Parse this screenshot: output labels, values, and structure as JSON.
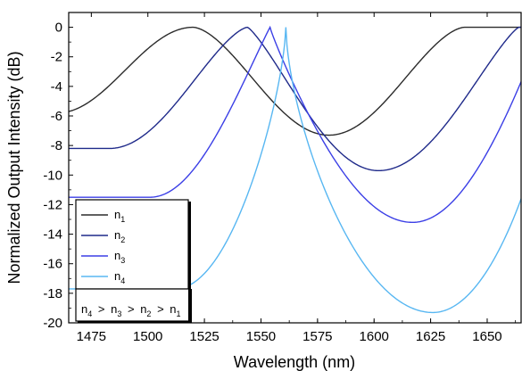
{
  "chart_data": {
    "type": "line",
    "xlabel": "Wavelength (nm)",
    "ylabel": "Normalized Output Intensity (dB)",
    "xlim": [
      1465,
      1665
    ],
    "ylim": [
      -20,
      1
    ],
    "x_ticks": [
      1475,
      1500,
      1525,
      1550,
      1575,
      1600,
      1625,
      1650
    ],
    "y_ticks": [
      0,
      -2,
      -4,
      -6,
      -8,
      -10,
      -12,
      -14,
      -16,
      -18,
      -20
    ],
    "x_tick_labels": [
      "1475",
      "1500",
      "1525",
      "1550",
      "1575",
      "1600",
      "1625",
      "1650"
    ],
    "y_tick_labels": [
      "0",
      "-2",
      "-4",
      "-6",
      "-8",
      "-10",
      "-12",
      "-14",
      "-16",
      "-18",
      "-20"
    ],
    "grid": false,
    "legend_position": "bottom-left",
    "series": [
      {
        "name": "n1",
        "color": "#2b2b2b",
        "peaks": [
          1520,
          1640
        ],
        "dips": [
          1460,
          1580
        ],
        "dip_values": [
          -5.8,
          -7.3
        ]
      },
      {
        "name": "n2",
        "color": "#1f2a8a",
        "peaks": [
          1544,
          1664
        ],
        "dips": [
          1483,
          1602
        ],
        "dip_values": [
          -8.2,
          -9.7
        ]
      },
      {
        "name": "n3",
        "color": "#3b3fe6",
        "peaks": [
          1554,
          1674
        ],
        "dips": [
          1501,
          1617
        ],
        "dip_values": [
          -11.5,
          -13.2
        ]
      },
      {
        "name": "n4",
        "color": "#58b7f2",
        "peaks": [
          1561,
          1681
        ],
        "dips": [
          1512,
          1626
        ],
        "dip_values": [
          -17.7,
          -19.3
        ]
      }
    ],
    "annotation": {
      "n4": "4",
      "n3": "3",
      "n2": "2",
      "n1": "1",
      "gt": ">"
    }
  }
}
